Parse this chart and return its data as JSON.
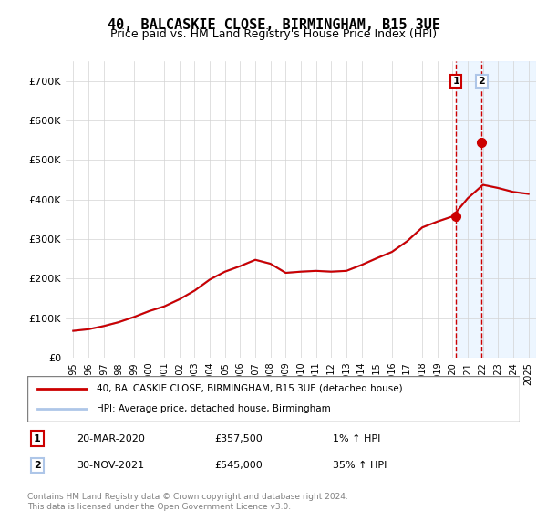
{
  "title": "40, BALCASKIE CLOSE, BIRMINGHAM, B15 3UE",
  "subtitle": "Price paid vs. HM Land Registry's House Price Index (HPI)",
  "ylim": [
    0,
    750000
  ],
  "yticks": [
    0,
    100000,
    200000,
    300000,
    400000,
    500000,
    600000,
    700000
  ],
  "ytick_labels": [
    "£0",
    "£100K",
    "£200K",
    "£300K",
    "£400K",
    "£500K",
    "£600K",
    "£700K"
  ],
  "hpi_color": "#aec6e8",
  "price_color": "#cc0000",
  "marker_color": "#cc0000",
  "annotation1_color": "#cc0000",
  "annotation2_color": "#aec6e8",
  "vline_color": "#cc0000",
  "shade_color": "#ddeeff",
  "legend_line1": "40, BALCASKIE CLOSE, BIRMINGHAM, B15 3UE (detached house)",
  "legend_line2": "HPI: Average price, detached house, Birmingham",
  "note1_num": "1",
  "note1_date": "20-MAR-2020",
  "note1_price": "£357,500",
  "note1_hpi": "1% ↑ HPI",
  "note2_num": "2",
  "note2_date": "30-NOV-2021",
  "note2_price": "£545,000",
  "note2_hpi": "35% ↑ HPI",
  "footer": "Contains HM Land Registry data © Crown copyright and database right 2024.\nThis data is licensed under the Open Government Licence v3.0.",
  "hpi_years": [
    1995,
    1996,
    1997,
    1998,
    1999,
    2000,
    2001,
    2002,
    2003,
    2004,
    2005,
    2006,
    2007,
    2008,
    2009,
    2010,
    2011,
    2012,
    2013,
    2014,
    2015,
    2016,
    2017,
    2018,
    2019,
    2020,
    2021,
    2022,
    2023,
    2024,
    2025
  ],
  "hpi_values": [
    68000,
    72000,
    80000,
    90000,
    103000,
    118000,
    130000,
    148000,
    170000,
    198000,
    218000,
    232000,
    248000,
    238000,
    215000,
    218000,
    220000,
    218000,
    220000,
    235000,
    252000,
    268000,
    295000,
    330000,
    345000,
    358000,
    404000,
    438000,
    430000,
    420000,
    415000
  ],
  "sale1_year": 2020.22,
  "sale1_price": 357500,
  "sale2_year": 2021.92,
  "sale2_price": 545000,
  "vline1_year": 2020.22,
  "vline2_year": 2021.92,
  "shade_start": 2020.22,
  "shade_end": 2025.5,
  "xtick_years": [
    1995,
    1996,
    1997,
    1998,
    1999,
    2000,
    2001,
    2002,
    2003,
    2004,
    2005,
    2006,
    2007,
    2008,
    2009,
    2010,
    2011,
    2012,
    2013,
    2014,
    2015,
    2016,
    2017,
    2018,
    2019,
    2020,
    2021,
    2022,
    2023,
    2024,
    2025
  ]
}
